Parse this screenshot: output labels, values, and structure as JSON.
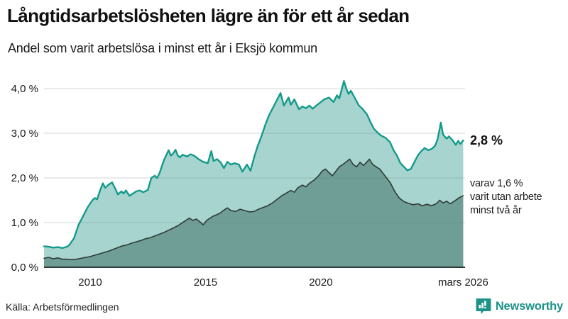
{
  "header": {
    "title": "Långtidsarbetslösheten lägre än för ett år sedan",
    "subtitle": "Andel som varit arbetslösa i minst ett år i Eksjö kommun"
  },
  "chart_data": {
    "type": "area",
    "title": "Långtidsarbetslösheten lägre än för ett år sedan",
    "subtitle": "Andel som varit arbetslösa i minst ett år i Eksjö kommun",
    "grid": true,
    "legend": "none",
    "x_axis": {
      "range": [
        2008.0,
        2026.25
      ],
      "ticks": [
        {
          "x": 2010.0,
          "label": "2010"
        },
        {
          "x": 2015.0,
          "label": "2015"
        },
        {
          "x": 2020.0,
          "label": "2020"
        },
        {
          "x": 2026.17,
          "label": "mars 2026"
        }
      ]
    },
    "y_axis": {
      "range": [
        0,
        4.35
      ],
      "unit": "%",
      "ticks": [
        {
          "value": 0,
          "label": "0,0 %"
        },
        {
          "value": 1,
          "label": "1,0 %"
        },
        {
          "value": 2,
          "label": "2,0 %"
        },
        {
          "value": 3,
          "label": "3,0 %"
        },
        {
          "value": 4,
          "label": "4,0 %"
        }
      ]
    },
    "series": [
      {
        "name": "Arbetslösa minst ett år",
        "line_color": "#139a8b",
        "fill_color": "#a7d4ce",
        "line_width": 2.4,
        "points": [
          [
            2008.0,
            0.47
          ],
          [
            2008.2,
            0.46
          ],
          [
            2008.4,
            0.44
          ],
          [
            2008.6,
            0.45
          ],
          [
            2008.8,
            0.43
          ],
          [
            2009.0,
            0.46
          ],
          [
            2009.1,
            0.5
          ],
          [
            2009.3,
            0.65
          ],
          [
            2009.5,
            0.95
          ],
          [
            2009.7,
            1.15
          ],
          [
            2009.9,
            1.35
          ],
          [
            2010.1,
            1.5
          ],
          [
            2010.2,
            1.55
          ],
          [
            2010.3,
            1.52
          ],
          [
            2010.45,
            1.75
          ],
          [
            2010.55,
            1.88
          ],
          [
            2010.65,
            1.78
          ],
          [
            2010.8,
            1.85
          ],
          [
            2010.95,
            1.9
          ],
          [
            2011.1,
            1.75
          ],
          [
            2011.2,
            1.63
          ],
          [
            2011.35,
            1.7
          ],
          [
            2011.45,
            1.65
          ],
          [
            2011.55,
            1.72
          ],
          [
            2011.7,
            1.6
          ],
          [
            2011.85,
            1.65
          ],
          [
            2012.0,
            1.7
          ],
          [
            2012.15,
            1.72
          ],
          [
            2012.3,
            1.68
          ],
          [
            2012.5,
            1.73
          ],
          [
            2012.65,
            2.0
          ],
          [
            2012.8,
            2.05
          ],
          [
            2012.9,
            2.0
          ],
          [
            2013.0,
            2.1
          ],
          [
            2013.2,
            2.4
          ],
          [
            2013.4,
            2.62
          ],
          [
            2013.5,
            2.5
          ],
          [
            2013.6,
            2.55
          ],
          [
            2013.7,
            2.63
          ],
          [
            2013.8,
            2.5
          ],
          [
            2013.9,
            2.46
          ],
          [
            2014.0,
            2.52
          ],
          [
            2014.2,
            2.48
          ],
          [
            2014.35,
            2.53
          ],
          [
            2014.5,
            2.5
          ],
          [
            2014.7,
            2.42
          ],
          [
            2014.9,
            2.36
          ],
          [
            2015.1,
            2.33
          ],
          [
            2015.25,
            2.6
          ],
          [
            2015.35,
            2.38
          ],
          [
            2015.5,
            2.42
          ],
          [
            2015.65,
            2.35
          ],
          [
            2015.8,
            2.22
          ],
          [
            2015.95,
            2.36
          ],
          [
            2016.1,
            2.3
          ],
          [
            2016.25,
            2.33
          ],
          [
            2016.45,
            2.3
          ],
          [
            2016.6,
            2.14
          ],
          [
            2016.8,
            2.3
          ],
          [
            2016.95,
            2.16
          ],
          [
            2017.1,
            2.45
          ],
          [
            2017.25,
            2.7
          ],
          [
            2017.4,
            2.9
          ],
          [
            2017.5,
            3.05
          ],
          [
            2017.6,
            3.2
          ],
          [
            2017.75,
            3.4
          ],
          [
            2017.9,
            3.55
          ],
          [
            2018.05,
            3.7
          ],
          [
            2018.25,
            3.9
          ],
          [
            2018.4,
            3.62
          ],
          [
            2018.6,
            3.8
          ],
          [
            2018.7,
            3.64
          ],
          [
            2018.85,
            3.76
          ],
          [
            2019.05,
            3.54
          ],
          [
            2019.2,
            3.6
          ],
          [
            2019.35,
            3.56
          ],
          [
            2019.5,
            3.62
          ],
          [
            2019.65,
            3.55
          ],
          [
            2019.8,
            3.62
          ],
          [
            2019.95,
            3.68
          ],
          [
            2020.15,
            3.76
          ],
          [
            2020.35,
            3.8
          ],
          [
            2020.55,
            3.7
          ],
          [
            2020.7,
            3.85
          ],
          [
            2020.8,
            3.78
          ],
          [
            2021.0,
            4.17
          ],
          [
            2021.1,
            4.0
          ],
          [
            2021.2,
            3.88
          ],
          [
            2021.3,
            3.95
          ],
          [
            2021.5,
            3.76
          ],
          [
            2021.65,
            3.62
          ],
          [
            2021.8,
            3.55
          ],
          [
            2022.0,
            3.42
          ],
          [
            2022.15,
            3.25
          ],
          [
            2022.3,
            3.1
          ],
          [
            2022.45,
            3.02
          ],
          [
            2022.6,
            2.95
          ],
          [
            2022.8,
            2.9
          ],
          [
            2023.0,
            2.8
          ],
          [
            2023.15,
            2.62
          ],
          [
            2023.3,
            2.5
          ],
          [
            2023.45,
            2.33
          ],
          [
            2023.6,
            2.25
          ],
          [
            2023.75,
            2.17
          ],
          [
            2023.9,
            2.2
          ],
          [
            2024.05,
            2.35
          ],
          [
            2024.2,
            2.5
          ],
          [
            2024.35,
            2.6
          ],
          [
            2024.5,
            2.67
          ],
          [
            2024.65,
            2.62
          ],
          [
            2024.8,
            2.65
          ],
          [
            2024.95,
            2.72
          ],
          [
            2025.05,
            2.85
          ],
          [
            2025.15,
            3.1
          ],
          [
            2025.2,
            3.24
          ],
          [
            2025.3,
            2.97
          ],
          [
            2025.45,
            2.88
          ],
          [
            2025.55,
            2.93
          ],
          [
            2025.7,
            2.85
          ],
          [
            2025.85,
            2.74
          ],
          [
            2025.95,
            2.83
          ],
          [
            2026.05,
            2.76
          ],
          [
            2026.17,
            2.84
          ]
        ]
      },
      {
        "name": "Arbetslösa minst två år",
        "line_color": "#2e3b38",
        "fill_color": "#6f9e97",
        "line_width": 1.6,
        "points": [
          [
            2008.0,
            0.2
          ],
          [
            2008.2,
            0.22
          ],
          [
            2008.4,
            0.19
          ],
          [
            2008.6,
            0.21
          ],
          [
            2008.8,
            0.18
          ],
          [
            2009.0,
            0.18
          ],
          [
            2009.2,
            0.17
          ],
          [
            2009.4,
            0.18
          ],
          [
            2009.6,
            0.2
          ],
          [
            2009.8,
            0.22
          ],
          [
            2010.0,
            0.24
          ],
          [
            2010.2,
            0.27
          ],
          [
            2010.4,
            0.3
          ],
          [
            2010.6,
            0.33
          ],
          [
            2010.8,
            0.36
          ],
          [
            2011.0,
            0.4
          ],
          [
            2011.2,
            0.44
          ],
          [
            2011.4,
            0.48
          ],
          [
            2011.6,
            0.5
          ],
          [
            2011.8,
            0.54
          ],
          [
            2012.0,
            0.57
          ],
          [
            2012.2,
            0.6
          ],
          [
            2012.4,
            0.64
          ],
          [
            2012.6,
            0.66
          ],
          [
            2012.8,
            0.7
          ],
          [
            2013.0,
            0.74
          ],
          [
            2013.2,
            0.78
          ],
          [
            2013.4,
            0.83
          ],
          [
            2013.6,
            0.88
          ],
          [
            2013.8,
            0.93
          ],
          [
            2014.0,
            1.0
          ],
          [
            2014.15,
            1.05
          ],
          [
            2014.3,
            1.1
          ],
          [
            2014.45,
            1.05
          ],
          [
            2014.6,
            1.08
          ],
          [
            2014.75,
            1.02
          ],
          [
            2014.9,
            0.95
          ],
          [
            2015.05,
            1.05
          ],
          [
            2015.2,
            1.1
          ],
          [
            2015.35,
            1.15
          ],
          [
            2015.5,
            1.18
          ],
          [
            2015.65,
            1.22
          ],
          [
            2015.8,
            1.28
          ],
          [
            2015.95,
            1.33
          ],
          [
            2016.1,
            1.27
          ],
          [
            2016.3,
            1.25
          ],
          [
            2016.5,
            1.3
          ],
          [
            2016.7,
            1.27
          ],
          [
            2016.9,
            1.24
          ],
          [
            2017.1,
            1.25
          ],
          [
            2017.3,
            1.3
          ],
          [
            2017.5,
            1.34
          ],
          [
            2017.7,
            1.38
          ],
          [
            2017.9,
            1.44
          ],
          [
            2018.1,
            1.52
          ],
          [
            2018.3,
            1.6
          ],
          [
            2018.5,
            1.66
          ],
          [
            2018.7,
            1.72
          ],
          [
            2018.85,
            1.68
          ],
          [
            2019.0,
            1.78
          ],
          [
            2019.2,
            1.84
          ],
          [
            2019.35,
            1.8
          ],
          [
            2019.5,
            1.88
          ],
          [
            2019.7,
            1.95
          ],
          [
            2019.9,
            2.05
          ],
          [
            2020.05,
            2.15
          ],
          [
            2020.2,
            2.2
          ],
          [
            2020.35,
            2.12
          ],
          [
            2020.5,
            2.05
          ],
          [
            2020.65,
            2.15
          ],
          [
            2020.8,
            2.25
          ],
          [
            2020.95,
            2.3
          ],
          [
            2021.1,
            2.36
          ],
          [
            2021.25,
            2.42
          ],
          [
            2021.4,
            2.3
          ],
          [
            2021.55,
            2.25
          ],
          [
            2021.7,
            2.35
          ],
          [
            2021.85,
            2.28
          ],
          [
            2022.0,
            2.36
          ],
          [
            2022.1,
            2.42
          ],
          [
            2022.25,
            2.3
          ],
          [
            2022.4,
            2.25
          ],
          [
            2022.55,
            2.2
          ],
          [
            2022.7,
            2.1
          ],
          [
            2022.85,
            2.0
          ],
          [
            2023.0,
            1.9
          ],
          [
            2023.2,
            1.7
          ],
          [
            2023.4,
            1.55
          ],
          [
            2023.6,
            1.47
          ],
          [
            2023.8,
            1.43
          ],
          [
            2024.0,
            1.4
          ],
          [
            2024.2,
            1.42
          ],
          [
            2024.4,
            1.38
          ],
          [
            2024.6,
            1.41
          ],
          [
            2024.8,
            1.38
          ],
          [
            2025.0,
            1.42
          ],
          [
            2025.15,
            1.5
          ],
          [
            2025.3,
            1.44
          ],
          [
            2025.45,
            1.48
          ],
          [
            2025.6,
            1.42
          ],
          [
            2025.75,
            1.47
          ],
          [
            2025.9,
            1.52
          ],
          [
            2026.0,
            1.56
          ],
          [
            2026.17,
            1.6
          ]
        ]
      }
    ],
    "annotations": {
      "latest_value": "2,8 %",
      "secondary_lines": [
        "varav 1,6 %",
        "varit utan arbete",
        "minst två år"
      ]
    }
  },
  "footer": {
    "source": "Källa: Arbetsförmedlingen",
    "logo_text": "Newsworthy",
    "logo_icon": "bar-chart-speech-bubble"
  },
  "colors": {
    "accent_teal": "#139a8b",
    "fill_light": "#a7d4ce",
    "fill_dark": "#6f9e97",
    "line_dark": "#2e3b38",
    "grid": "#83889297",
    "brand_teal": "#1e9288",
    "text": "#1a1a1a"
  }
}
